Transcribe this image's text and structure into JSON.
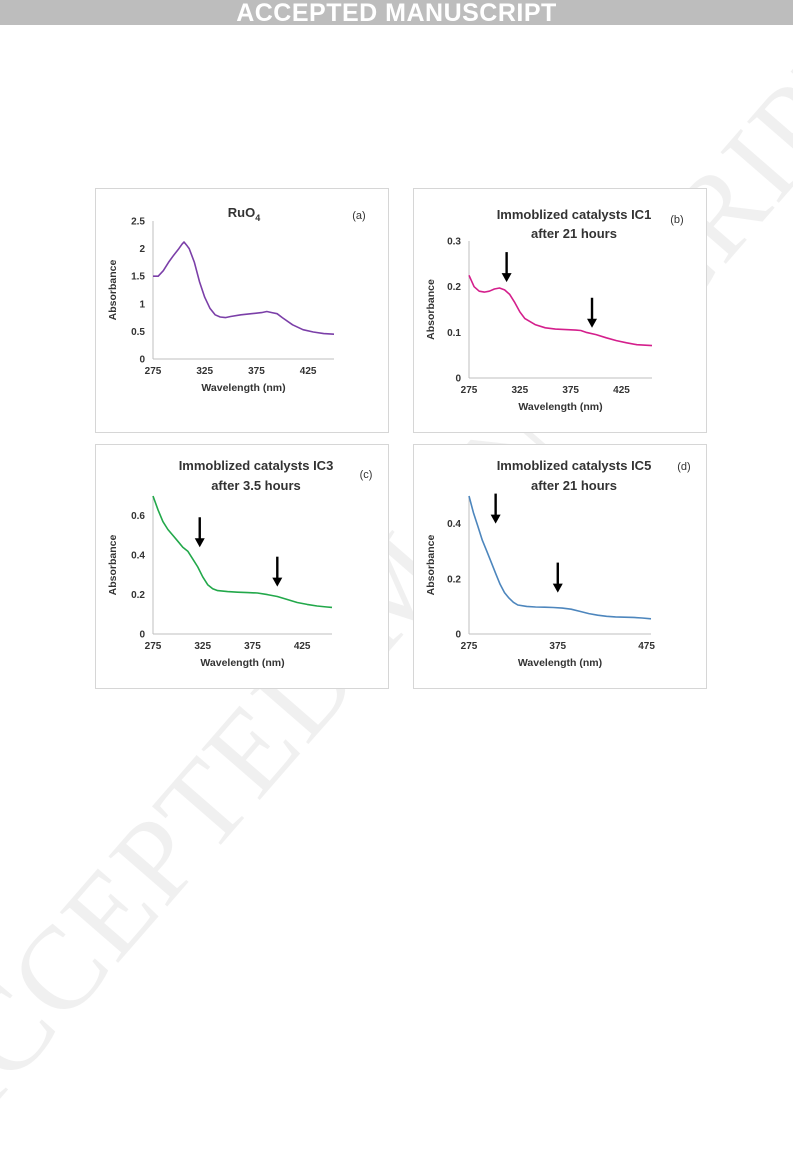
{
  "header": {
    "banner": "ACCEPTED MANUSCRIPT"
  },
  "watermark": "ACCEPTED MANUSCRIPT",
  "chart_data": [
    {
      "type": "line",
      "panel_label": "(a)",
      "title": "RuO",
      "title_subscript": "4",
      "title_line2": "",
      "xlabel": "Wavelength (nm)",
      "ylabel": "Absorbance",
      "xlim": [
        275,
        450
      ],
      "ylim": [
        0,
        2.5
      ],
      "xticks": [
        "275",
        "325",
        "375",
        "425"
      ],
      "yticks": [
        "0",
        "0.5",
        "1",
        "1.5",
        "2",
        "2.5"
      ],
      "color": "#7b3fa8",
      "x": [
        275,
        280,
        285,
        290,
        295,
        300,
        303,
        305,
        308,
        310,
        315,
        320,
        325,
        330,
        335,
        340,
        345,
        350,
        360,
        370,
        380,
        385,
        390,
        395,
        400,
        410,
        420,
        430,
        440,
        450
      ],
      "y": [
        1.5,
        1.5,
        1.6,
        1.75,
        1.88,
        2.0,
        2.08,
        2.12,
        2.05,
        2.0,
        1.75,
        1.4,
        1.12,
        0.92,
        0.8,
        0.76,
        0.75,
        0.77,
        0.8,
        0.82,
        0.84,
        0.86,
        0.84,
        0.82,
        0.75,
        0.62,
        0.53,
        0.49,
        0.46,
        0.45
      ],
      "arrows": []
    },
    {
      "type": "line",
      "panel_label": "(b)",
      "title": "Immoblized catalysts IC1",
      "title_subscript": "",
      "title_line2": "after 21 hours",
      "xlabel": "Wavelength (nm)",
      "ylabel": "Absorbance",
      "xlim": [
        275,
        455
      ],
      "ylim": [
        0,
        0.3
      ],
      "xticks": [
        "275",
        "325",
        "375",
        "425"
      ],
      "yticks": [
        "0",
        "0.1",
        "0.2",
        "0.3"
      ],
      "color": "#d41f8c",
      "x": [
        275,
        280,
        285,
        290,
        295,
        300,
        305,
        310,
        315,
        320,
        325,
        330,
        340,
        350,
        360,
        370,
        380,
        385,
        390,
        400,
        410,
        420,
        430,
        440,
        455
      ],
      "y": [
        0.225,
        0.2,
        0.19,
        0.188,
        0.19,
        0.195,
        0.197,
        0.193,
        0.183,
        0.165,
        0.145,
        0.13,
        0.117,
        0.11,
        0.107,
        0.106,
        0.105,
        0.104,
        0.1,
        0.095,
        0.088,
        0.082,
        0.077,
        0.073,
        0.071
      ],
      "arrows": [
        {
          "x": 312,
          "y": 0.21
        },
        {
          "x": 396,
          "y": 0.11
        }
      ]
    },
    {
      "type": "line",
      "panel_label": "(c)",
      "title": "Immoblized catalysts IC3",
      "title_subscript": "",
      "title_line2": "after 3.5 hours",
      "xlabel": "Wavelength (nm)",
      "ylabel": "Absorbance",
      "xlim": [
        275,
        455
      ],
      "ylim": [
        0,
        0.7
      ],
      "xticks": [
        "275",
        "325",
        "375",
        "425"
      ],
      "yticks": [
        "0",
        "0.2",
        "0.4",
        "0.6"
      ],
      "color": "#22a84a",
      "x": [
        275,
        280,
        285,
        290,
        295,
        300,
        305,
        310,
        315,
        320,
        325,
        330,
        335,
        340,
        350,
        360,
        370,
        380,
        390,
        400,
        410,
        420,
        430,
        440,
        450,
        455
      ],
      "y": [
        0.7,
        0.63,
        0.57,
        0.53,
        0.5,
        0.47,
        0.44,
        0.42,
        0.38,
        0.34,
        0.29,
        0.25,
        0.23,
        0.22,
        0.215,
        0.212,
        0.21,
        0.208,
        0.2,
        0.19,
        0.175,
        0.16,
        0.15,
        0.142,
        0.137,
        0.135
      ],
      "arrows": [
        {
          "x": 322,
          "y": 0.44
        },
        {
          "x": 400,
          "y": 0.24
        }
      ]
    },
    {
      "type": "line",
      "panel_label": "(d)",
      "title": "Immoblized catalysts IC5",
      "title_subscript": "",
      "title_line2": "after 21 hours",
      "xlabel": "Wavelength (nm)",
      "ylabel": "Absorbance",
      "xlim": [
        275,
        480
      ],
      "ylim": [
        0,
        0.5
      ],
      "xticks": [
        "275",
        "375",
        "475"
      ],
      "yticks": [
        "0",
        "0.2",
        "0.4"
      ],
      "color": "#4d86bd",
      "x": [
        275,
        280,
        285,
        290,
        295,
        300,
        305,
        310,
        315,
        320,
        325,
        330,
        340,
        350,
        360,
        370,
        380,
        390,
        400,
        410,
        420,
        430,
        440,
        450,
        460,
        470,
        480
      ],
      "y": [
        0.5,
        0.44,
        0.39,
        0.34,
        0.3,
        0.26,
        0.22,
        0.18,
        0.15,
        0.13,
        0.115,
        0.105,
        0.1,
        0.098,
        0.097,
        0.096,
        0.094,
        0.09,
        0.082,
        0.074,
        0.068,
        0.064,
        0.062,
        0.061,
        0.06,
        0.058,
        0.055
      ],
      "arrows": [
        {
          "x": 305,
          "y": 0.4
        },
        {
          "x": 375,
          "y": 0.15
        }
      ]
    }
  ]
}
